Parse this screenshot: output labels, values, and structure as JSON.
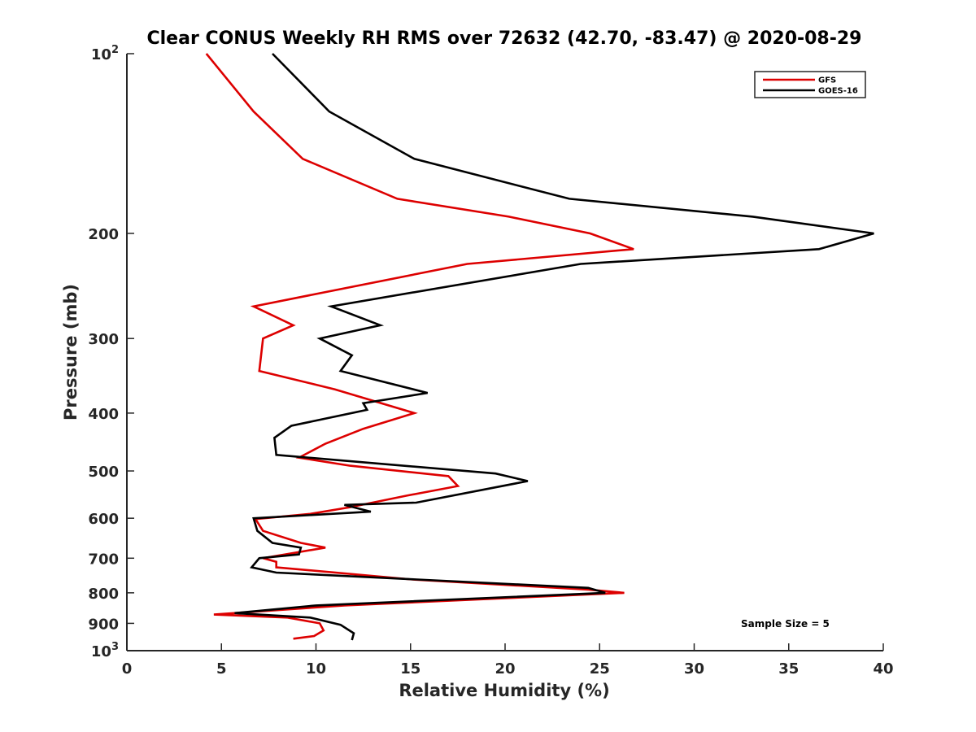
{
  "chart_data": {
    "type": "line",
    "title": "Clear CONUS Weekly RH RMS over 72632 (42.70, -83.47) @ 2020-08-29",
    "xlabel": "Relative Humidity (%)",
    "ylabel": "Pressure (mb)",
    "xlim": [
      0,
      40
    ],
    "ylim": [
      100,
      1000
    ],
    "y_scale": "log",
    "y_reversed": true,
    "x_ticks": [
      "0",
      "5",
      "10",
      "15",
      "20",
      "25",
      "30",
      "35",
      "40"
    ],
    "y_ticks": [
      {
        "value": 100,
        "base": "10",
        "exp": "2"
      },
      {
        "value": 200,
        "label": "200"
      },
      {
        "value": 300,
        "label": "300"
      },
      {
        "value": 400,
        "label": "400"
      },
      {
        "value": 500,
        "label": "500"
      },
      {
        "value": 600,
        "label": "600"
      },
      {
        "value": 700,
        "label": "700"
      },
      {
        "value": 800,
        "label": "800"
      },
      {
        "value": 900,
        "label": "900"
      },
      {
        "value": 1000,
        "base": "10",
        "exp": "3"
      }
    ],
    "grid": false,
    "legend_position": "top-right",
    "annotation": "Sample Size = 5",
    "series": [
      {
        "name": "GFS",
        "color": "#dd0000",
        "points": [
          [
            4.2,
            100
          ],
          [
            6.7,
            125
          ],
          [
            9.3,
            150
          ],
          [
            14.3,
            175
          ],
          [
            20.2,
            187.5
          ],
          [
            24.5,
            200
          ],
          [
            26.8,
            212.5
          ],
          [
            18.0,
            225
          ],
          [
            6.7,
            265
          ],
          [
            8.8,
            285
          ],
          [
            7.2,
            300
          ],
          [
            7.0,
            340
          ],
          [
            11.0,
            365
          ],
          [
            15.2,
            400
          ],
          [
            12.5,
            425
          ],
          [
            10.5,
            450
          ],
          [
            9.1,
            475
          ],
          [
            11.8,
            490
          ],
          [
            17.0,
            510
          ],
          [
            17.5,
            530
          ],
          [
            14.8,
            550
          ],
          [
            11.8,
            575
          ],
          [
            9.7,
            590
          ],
          [
            6.8,
            602
          ],
          [
            7.2,
            630
          ],
          [
            9.2,
            660
          ],
          [
            10.5,
            672
          ],
          [
            7.2,
            700
          ],
          [
            7.9,
            710
          ],
          [
            7.9,
            725
          ],
          [
            15.1,
            760
          ],
          [
            24.4,
            790
          ],
          [
            26.3,
            800
          ],
          [
            11.5,
            840
          ],
          [
            4.6,
            870
          ],
          [
            8.5,
            880
          ],
          [
            10.2,
            900
          ],
          [
            10.4,
            925
          ],
          [
            9.9,
            945
          ],
          [
            8.8,
            955
          ]
        ]
      },
      {
        "name": "GOES-16",
        "color": "#000000",
        "points": [
          [
            7.7,
            100
          ],
          [
            10.7,
            125
          ],
          [
            15.2,
            150
          ],
          [
            23.4,
            175
          ],
          [
            33.1,
            187.5
          ],
          [
            39.5,
            200
          ],
          [
            36.6,
            212.5
          ],
          [
            24.0,
            225
          ],
          [
            10.8,
            265
          ],
          [
            13.4,
            285
          ],
          [
            10.2,
            300
          ],
          [
            11.9,
            320
          ],
          [
            11.3,
            340
          ],
          [
            15.9,
            370
          ],
          [
            12.5,
            385
          ],
          [
            12.7,
            395
          ],
          [
            8.7,
            420
          ],
          [
            7.8,
            440
          ],
          [
            7.9,
            470
          ],
          [
            19.5,
            505
          ],
          [
            21.2,
            520
          ],
          [
            15.3,
            565
          ],
          [
            11.5,
            570
          ],
          [
            12.9,
            585
          ],
          [
            6.7,
            600
          ],
          [
            6.9,
            630
          ],
          [
            7.7,
            660
          ],
          [
            9.2,
            672
          ],
          [
            9.1,
            690
          ],
          [
            7.0,
            700
          ],
          [
            6.6,
            725
          ],
          [
            7.9,
            740
          ],
          [
            24.4,
            785
          ],
          [
            25.3,
            800
          ],
          [
            10.0,
            840
          ],
          [
            5.7,
            865
          ],
          [
            9.7,
            880
          ],
          [
            11.3,
            905
          ],
          [
            12.0,
            935
          ],
          [
            11.9,
            960
          ]
        ]
      }
    ]
  }
}
